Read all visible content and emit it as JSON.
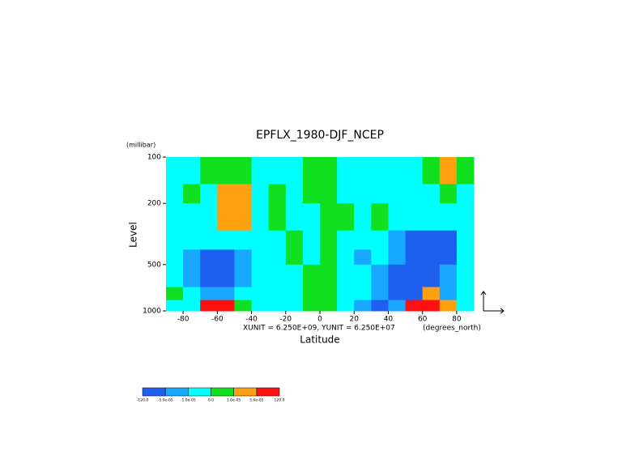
{
  "chart_data": {
    "type": "contour",
    "title": "EPFLX_1980-DJF_NCEP",
    "x_label": "Latitude",
    "x_units": "(degrees_north)",
    "y_label": "Level",
    "y_units": "(millibar)",
    "footnote": "XUNIT = 6.250E+09, YUNIT = 6.250E+07",
    "xlim": [
      -90,
      90
    ],
    "xticks": [
      -80,
      -60,
      -40,
      -20,
      0,
      20,
      40,
      60,
      80
    ],
    "ylim": [
      1000,
      100
    ],
    "y_log": true,
    "yticks": [
      100,
      200,
      500,
      1000
    ],
    "x_edges": [
      -90,
      -80,
      -70,
      -60,
      -50,
      -40,
      -30,
      -20,
      -10,
      0,
      10,
      20,
      30,
      40,
      50,
      60,
      70,
      80,
      90
    ],
    "y_edges": [
      100,
      150,
      200,
      300,
      400,
      500,
      700,
      850,
      1000
    ],
    "z": [
      [
        -5e-06,
        -5e-06,
        5e-06,
        5e-06,
        5e-06,
        -5e-06,
        -5e-06,
        -5e-06,
        5e-06,
        5e-06,
        -5e-06,
        -5e-06,
        -5e-06,
        -5e-06,
        -5e-06,
        5e-06,
        3e-05,
        5e-06
      ],
      [
        -5e-06,
        5e-06,
        -5e-06,
        3e-05,
        3e-05,
        -5e-06,
        5e-06,
        -5e-06,
        5e-06,
        5e-06,
        -5e-06,
        -5e-06,
        -5e-06,
        -5e-06,
        -5e-06,
        -5e-06,
        5e-06,
        -5e-06
      ],
      [
        -5e-06,
        -5e-06,
        -5e-06,
        3e-05,
        3e-05,
        -5e-06,
        5e-06,
        -5e-06,
        -5e-06,
        5e-06,
        5e-06,
        -5e-06,
        5e-06,
        -5e-06,
        -5e-06,
        -5e-06,
        -5e-06,
        -5e-06
      ],
      [
        -5e-06,
        -5e-06,
        -5e-06,
        -5e-06,
        -5e-06,
        -5e-06,
        -5e-06,
        5e-06,
        -5e-06,
        5e-06,
        -5e-06,
        -5e-06,
        -5e-06,
        -3e-05,
        -0.0001,
        -0.0001,
        -0.0001,
        -5e-06
      ],
      [
        -5e-06,
        -3e-05,
        -0.0001,
        -0.0001,
        -3e-05,
        -5e-06,
        -5e-06,
        5e-06,
        -5e-06,
        5e-06,
        -5e-06,
        -3e-05,
        -5e-06,
        -3e-05,
        -0.0001,
        -0.0001,
        -0.0001,
        -5e-06
      ],
      [
        -5e-06,
        -3e-05,
        -0.0001,
        -0.0001,
        -3e-05,
        -5e-06,
        -5e-06,
        -5e-06,
        5e-06,
        5e-06,
        -5e-06,
        -5e-06,
        -3e-05,
        -0.0001,
        -0.0001,
        -0.0001,
        -3e-05,
        -5e-06
      ],
      [
        5e-06,
        -5e-06,
        -3e-05,
        -3e-05,
        -5e-06,
        -5e-06,
        -5e-06,
        -5e-06,
        5e-06,
        5e-06,
        -5e-06,
        -5e-06,
        -3e-05,
        -0.0001,
        -0.0001,
        3e-05,
        -3e-05,
        -5e-06
      ],
      [
        -5e-06,
        -5e-06,
        0.0001,
        0.0001,
        5e-06,
        -5e-06,
        -5e-06,
        -5e-06,
        5e-06,
        5e-06,
        -5e-06,
        -3e-05,
        -0.0001,
        -3e-05,
        0.0001,
        0.0001,
        3e-05,
        -5e-06
      ]
    ],
    "levels": [
      {
        "value": -120,
        "label": "-120.0"
      },
      {
        "value": -5e-05,
        "label": "-5.0e-05"
      },
      {
        "value": -1e-05,
        "label": "-1.0e-05"
      },
      {
        "value": 0,
        "label": "0.0"
      },
      {
        "value": 1e-05,
        "label": "1.0e-05"
      },
      {
        "value": 5e-05,
        "label": "5.0e-05"
      },
      {
        "value": 120,
        "label": "120.0"
      }
    ],
    "colors": [
      "#1f5ff0",
      "#18a8ff",
      "#00ffff",
      "#10e020",
      "#ffa010",
      "#ff1010"
    ]
  }
}
